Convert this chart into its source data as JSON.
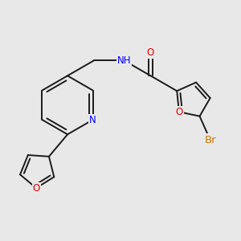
{
  "bg_color": "#e8e8e8",
  "bond_color": "#1a1a1a",
  "atom_colors": {
    "O": "#e00000",
    "N": "#0000ff",
    "Br": "#cc7700",
    "C": "#1a1a1a"
  },
  "font_size": 8.5,
  "bond_width": 1.4,
  "dbo": 0.055
}
